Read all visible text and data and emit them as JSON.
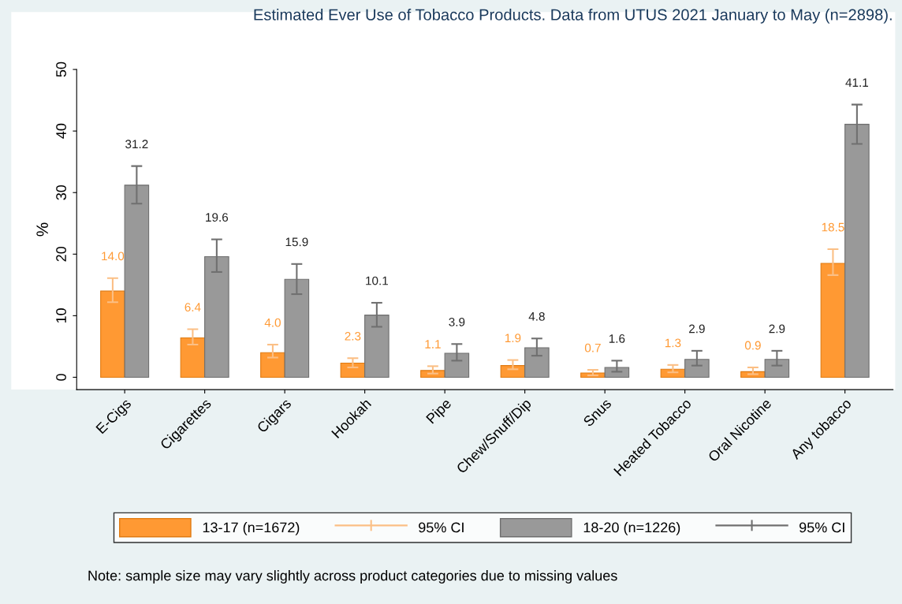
{
  "chart_data": {
    "type": "bar",
    "title": "Estimated Ever Use of Tobacco Products. Data from UTUS 2021 January to May (n=2898).",
    "ylabel": "%",
    "categories": [
      "E-Cigs",
      "Cigarettes",
      "Cigars",
      "Hookah",
      "Pipe",
      "Chew/Snuff/Dip",
      "Snus",
      "Heated Tobacco",
      "Oral Nicotine",
      "Any tobacco"
    ],
    "series": [
      {
        "name": "13-17 (n=1672)",
        "color": "#ff9933",
        "values": [
          14.0,
          6.4,
          4.0,
          2.3,
          1.1,
          1.9,
          0.7,
          1.3,
          0.9,
          18.5
        ],
        "value_labels": [
          "14.0",
          "6.4",
          "4.0",
          "2.3",
          "1.1",
          "1.9",
          "0.7",
          "1.3",
          "0.9",
          "18.5"
        ],
        "errors": [
          [
            12.2,
            16.1
          ],
          [
            5.3,
            7.8
          ],
          [
            3.2,
            5.3
          ],
          [
            1.6,
            3.1
          ],
          [
            0.6,
            1.8
          ],
          [
            1.3,
            2.8
          ],
          [
            0.3,
            1.2
          ],
          [
            0.8,
            2.0
          ],
          [
            0.5,
            1.6
          ],
          [
            16.6,
            20.8
          ]
        ]
      },
      {
        "name": "18-20 (n=1226)",
        "color": "#999999",
        "values": [
          31.2,
          19.6,
          15.9,
          10.1,
          3.9,
          4.8,
          1.6,
          2.9,
          2.9,
          41.1
        ],
        "value_labels": [
          "31.2",
          "19.6",
          "15.9",
          "10.1",
          "3.9",
          "4.8",
          "1.6",
          "2.9",
          "2.9",
          "41.1"
        ],
        "errors": [
          [
            28.2,
            34.3
          ],
          [
            17.1,
            22.4
          ],
          [
            13.5,
            18.4
          ],
          [
            8.2,
            12.1
          ],
          [
            2.7,
            5.4
          ],
          [
            3.5,
            6.3
          ],
          [
            0.9,
            2.7
          ],
          [
            1.9,
            4.3
          ],
          [
            1.9,
            4.3
          ],
          [
            37.9,
            44.3
          ]
        ]
      }
    ],
    "ylim": [
      -2,
      50
    ],
    "yticks": [
      0,
      10,
      20,
      30,
      40,
      50
    ],
    "grid": false,
    "legend": "bottom",
    "annotations": [
      "95% CI",
      "95% CI",
      "Note: sample size may vary slightly across product categories due to missing values"
    ]
  }
}
